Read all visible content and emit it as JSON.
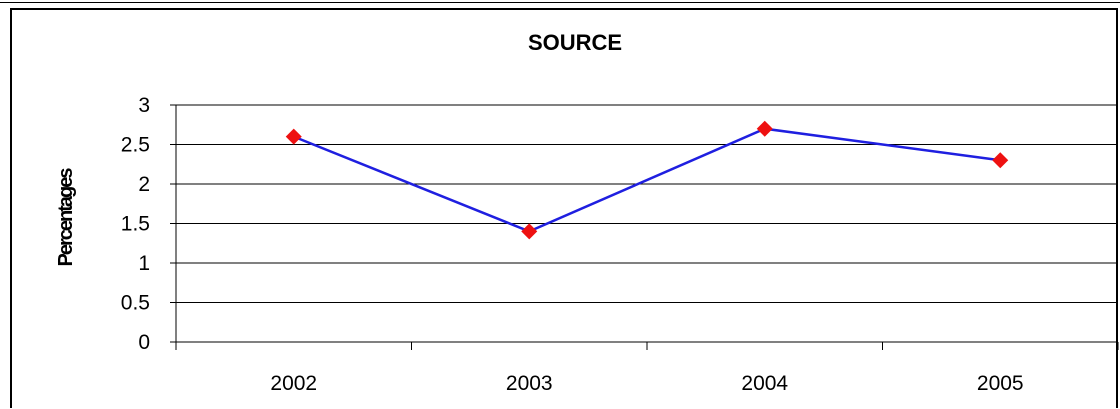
{
  "chart_data": {
    "type": "line",
    "title": "SOURCE",
    "xlabel": "",
    "ylabel": "Percentages",
    "categories": [
      "2002",
      "2003",
      "2004",
      "2005"
    ],
    "series": [
      {
        "values": [
          2.6,
          1.4,
          2.7,
          2.3
        ]
      }
    ],
    "ylim": [
      0,
      3
    ],
    "yticks": [
      "0",
      "0.5",
      "1",
      "1.5",
      "2",
      "2.5",
      "3"
    ],
    "grid": true,
    "legend": "none",
    "line_color": "#1f1fe0",
    "marker_color": "#ee1111",
    "marker": "diamond"
  }
}
